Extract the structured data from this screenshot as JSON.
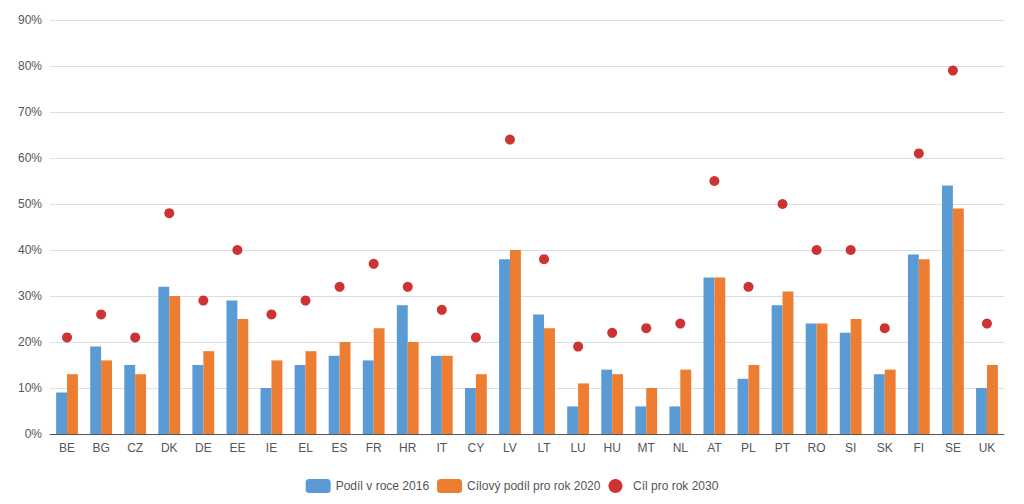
{
  "chart_data": {
    "type": "bar",
    "categories": [
      "BE",
      "BG",
      "CZ",
      "DK",
      "DE",
      "EE",
      "IE",
      "EL",
      "ES",
      "FR",
      "HR",
      "IT",
      "CY",
      "LV",
      "LT",
      "LU",
      "HU",
      "MT",
      "NL",
      "AT",
      "PL",
      "PT",
      "RO",
      "SI",
      "SK",
      "FI",
      "SE",
      "UK"
    ],
    "series": [
      {
        "name": "Podíl v roce 2016",
        "color": "#5B9BD5",
        "values": [
          9,
          19,
          15,
          32,
          15,
          29,
          10,
          15,
          17,
          16,
          28,
          17,
          10,
          38,
          26,
          6,
          14,
          6,
          6,
          34,
          12,
          28,
          24,
          22,
          13,
          39,
          54,
          10
        ]
      },
      {
        "name": "Cílový podíl pro rok 2020",
        "color": "#ED7D31",
        "values": [
          13,
          16,
          13,
          30,
          18,
          25,
          16,
          18,
          20,
          23,
          20,
          17,
          13,
          40,
          23,
          11,
          13,
          10,
          14,
          34,
          15,
          31,
          24,
          25,
          14,
          38,
          49,
          15
        ]
      },
      {
        "name": "Cíl pro rok 2030",
        "color": "#C00000",
        "type": "scatter",
        "marker": "circle",
        "values": [
          21,
          26,
          21,
          48,
          29,
          40,
          26,
          29,
          32,
          37,
          32,
          27,
          21,
          64,
          38,
          19,
          22,
          23,
          24,
          55,
          32,
          50,
          40,
          40,
          23,
          61,
          79,
          24
        ]
      }
    ],
    "ylim": [
      0,
      90
    ],
    "yticks": [
      {
        "value": 0,
        "label": "0%"
      },
      {
        "value": 10,
        "label": "10%"
      },
      {
        "value": 20,
        "label": "20%"
      },
      {
        "value": 30,
        "label": "30%"
      },
      {
        "value": 40,
        "label": "40%"
      },
      {
        "value": 50,
        "label": "50%"
      },
      {
        "value": 60,
        "label": "60%"
      },
      {
        "value": 70,
        "label": "70%"
      },
      {
        "value": 80,
        "label": "80%"
      },
      {
        "value": 90,
        "label": "90%"
      }
    ],
    "grid": true,
    "legend": "bottom"
  }
}
